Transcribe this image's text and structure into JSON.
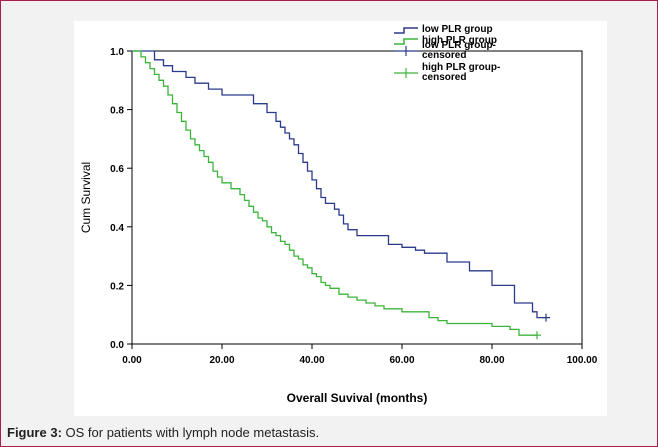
{
  "figure": {
    "caption_label": "Figure 3:",
    "caption_text": " OS for patients with lymph node metastasis."
  },
  "chart_data": {
    "type": "line",
    "subtype": "kaplan-meier-step",
    "xlabel": "Overall Suvival (months)",
    "ylabel": "Cum Survival",
    "xlim": [
      0,
      100
    ],
    "ylim": [
      0,
      1.0
    ],
    "x_ticks": [
      0,
      20,
      40,
      60,
      80,
      100
    ],
    "x_tick_labels": [
      "0.00",
      "20.00",
      "40.00",
      "60.00",
      "80.00",
      "100.00"
    ],
    "y_ticks": [
      0,
      0.2,
      0.4,
      0.6,
      0.8,
      1.0
    ],
    "y_tick_labels": [
      "0.0",
      "0.2",
      "0.4",
      "0.6",
      "0.8",
      "1.0"
    ],
    "grid": false,
    "legend_position": "top-right",
    "legend": [
      {
        "label": "low PLR group",
        "kind": "line",
        "color": "#2b3a8a"
      },
      {
        "label": "high PLR group",
        "kind": "line",
        "color": "#3cb43c"
      },
      {
        "label": "low PLR group-censored",
        "kind": "censor",
        "color": "#2b3a8a"
      },
      {
        "label": "high PLR group-censored",
        "kind": "censor",
        "color": "#3cb43c"
      }
    ],
    "series": [
      {
        "name": "low PLR group",
        "color": "#2b3a8a",
        "x": [
          0,
          5,
          7,
          9,
          12,
          14,
          17,
          20,
          25,
          27,
          30,
          32,
          33,
          34,
          35,
          36,
          37,
          38,
          39,
          40,
          41,
          42,
          43,
          45,
          46,
          47,
          48,
          50,
          55,
          57,
          60,
          63,
          65,
          70,
          75,
          80,
          85,
          89,
          90
        ],
        "y": [
          1.0,
          0.97,
          0.95,
          0.93,
          0.91,
          0.89,
          0.87,
          0.85,
          0.85,
          0.82,
          0.79,
          0.76,
          0.74,
          0.72,
          0.7,
          0.68,
          0.65,
          0.62,
          0.59,
          0.56,
          0.53,
          0.5,
          0.48,
          0.46,
          0.44,
          0.41,
          0.39,
          0.37,
          0.37,
          0.34,
          0.33,
          0.32,
          0.31,
          0.28,
          0.25,
          0.2,
          0.14,
          0.11,
          0.09
        ],
        "censored": [
          {
            "x": 92,
            "y": 0.09
          }
        ]
      },
      {
        "name": "high PLR group",
        "color": "#3cb43c",
        "x": [
          0,
          2,
          3,
          4,
          5,
          6,
          7,
          8,
          9,
          10,
          11,
          12,
          13,
          14,
          15,
          16,
          17,
          18,
          19,
          20,
          22,
          24,
          25,
          26,
          27,
          28,
          29,
          30,
          31,
          32,
          33,
          34,
          35,
          36,
          37,
          38,
          39,
          40,
          41,
          42,
          43,
          44,
          46,
          48,
          50,
          52,
          54,
          56,
          58,
          60,
          66,
          68,
          70,
          80,
          84,
          86
        ],
        "y": [
          1.0,
          0.98,
          0.96,
          0.94,
          0.92,
          0.9,
          0.88,
          0.85,
          0.82,
          0.79,
          0.76,
          0.73,
          0.7,
          0.68,
          0.66,
          0.64,
          0.62,
          0.59,
          0.57,
          0.55,
          0.53,
          0.51,
          0.49,
          0.47,
          0.45,
          0.43,
          0.42,
          0.4,
          0.38,
          0.37,
          0.35,
          0.34,
          0.32,
          0.3,
          0.29,
          0.27,
          0.26,
          0.24,
          0.23,
          0.21,
          0.2,
          0.19,
          0.17,
          0.16,
          0.15,
          0.14,
          0.13,
          0.12,
          0.12,
          0.11,
          0.09,
          0.08,
          0.07,
          0.06,
          0.05,
          0.03
        ],
        "censored": [
          {
            "x": 90,
            "y": 0.03
          }
        ]
      }
    ]
  }
}
